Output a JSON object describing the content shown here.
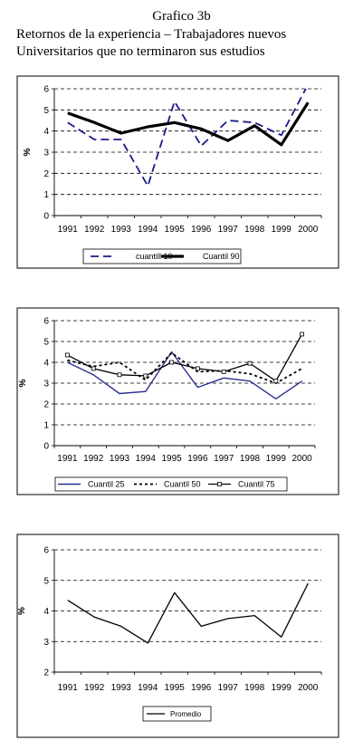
{
  "header": {
    "title": "Grafico 3b",
    "subtitle_line1": "Retornos de la experiencia – Trabajadores nuevos",
    "subtitle_line2": "Universitarios que no terminaron sus estudios"
  },
  "chart_data": [
    {
      "type": "line",
      "ylabel": "%",
      "ylim": [
        0,
        6
      ],
      "yticks": [
        "0",
        "1",
        "2",
        "3",
        "4",
        "5",
        "6"
      ],
      "categories": [
        "1991",
        "1992",
        "1993",
        "1994",
        "1995",
        "1996",
        "1997",
        "1998",
        "1999",
        "2000"
      ],
      "grid": true,
      "legend_position": "bottom",
      "series": [
        {
          "name": "cuantill 10",
          "style": "dash",
          "values": [
            4.4,
            3.6,
            3.6,
            1.4,
            5.4,
            3.3,
            4.5,
            4.4,
            3.8,
            6.2
          ]
        },
        {
          "name": "Cuantil 90",
          "style": "thick",
          "values": [
            4.85,
            4.4,
            3.9,
            4.2,
            4.4,
            4.1,
            3.55,
            4.25,
            3.35,
            5.35
          ]
        }
      ]
    },
    {
      "type": "line",
      "ylabel": "%",
      "ylim": [
        0,
        6
      ],
      "yticks": [
        "0",
        "1",
        "2",
        "3",
        "4",
        "5",
        "6"
      ],
      "categories": [
        "1991",
        "1992",
        "1993",
        "1994",
        "1995",
        "1996",
        "1997",
        "1998",
        "1999",
        "2000"
      ],
      "grid": true,
      "legend_position": "bottom",
      "series": [
        {
          "name": "Cuantil 25",
          "style": "solid-blue",
          "values": [
            4.0,
            3.4,
            2.5,
            2.6,
            4.5,
            2.8,
            3.25,
            3.1,
            2.25,
            3.1
          ]
        },
        {
          "name": "Cuantil 50",
          "style": "dot",
          "values": [
            4.1,
            3.8,
            4.0,
            3.15,
            4.45,
            3.55,
            3.6,
            3.45,
            3.0,
            3.7
          ]
        },
        {
          "name": "Cuantil 75",
          "style": "marker",
          "values": [
            4.35,
            3.7,
            3.4,
            3.35,
            4.0,
            3.7,
            3.55,
            3.95,
            3.1,
            5.35
          ]
        }
      ]
    },
    {
      "type": "line",
      "ylabel": "%",
      "ylim": [
        2,
        6
      ],
      "yticks": [
        "2",
        "3",
        "4",
        "5",
        "6"
      ],
      "categories": [
        "1991",
        "1992",
        "1993",
        "1994",
        "1995",
        "1996",
        "1997",
        "1998",
        "1999",
        "2000"
      ],
      "grid": true,
      "legend_position": "bottom",
      "series": [
        {
          "name": "Promedio",
          "style": "solid",
          "values": [
            4.35,
            3.8,
            3.5,
            2.95,
            4.6,
            3.5,
            3.75,
            3.85,
            3.15,
            4.9
          ]
        }
      ]
    }
  ]
}
